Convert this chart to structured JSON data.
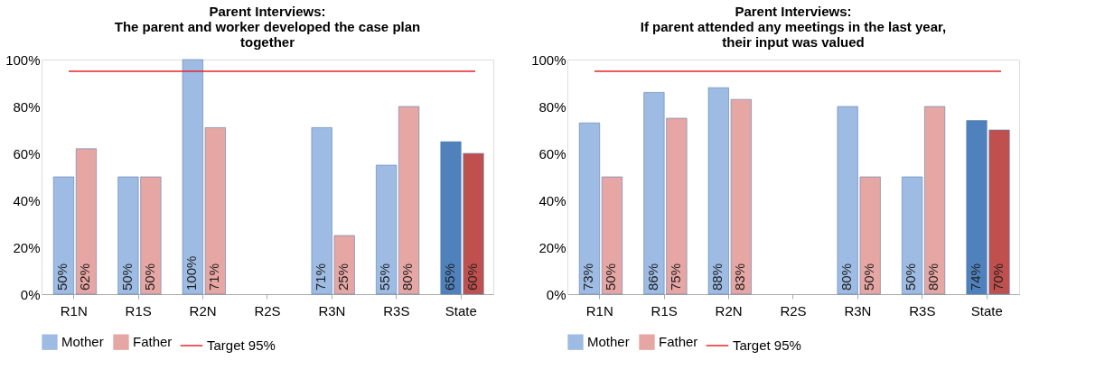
{
  "chart_data": [
    {
      "type": "bar",
      "title": "Parent Interviews:\nThe parent and worker developed the case plan\ntogether",
      "categories": [
        "R1N",
        "R1S",
        "R2N",
        "R2S",
        "R3N",
        "R3S",
        "State"
      ],
      "series": [
        {
          "name": "Mother",
          "color": "#9dbbe3",
          "colors": [
            "#9dbbe3",
            "#9dbbe3",
            "#9dbbe3",
            "#9dbbe3",
            "#9dbbe3",
            "#9dbbe3",
            "#4f81bd"
          ],
          "values": [
            50,
            50,
            100,
            null,
            71,
            55,
            65
          ],
          "value_labels": [
            "50%",
            "50%",
            "100%",
            null,
            "71%",
            "55%",
            "65%"
          ]
        },
        {
          "name": "Father",
          "color": "#e6a6a4",
          "colors": [
            "#e6a6a4",
            "#e6a6a4",
            "#e6a6a4",
            "#e6a6a4",
            "#e6a6a4",
            "#e6a6a4",
            "#c0504d"
          ],
          "values": [
            62,
            50,
            71,
            null,
            25,
            80,
            60
          ],
          "value_labels": [
            "62%",
            "50%",
            "71%",
            null,
            "25%",
            "80%",
            "60%"
          ]
        }
      ],
      "ylim": [
        0,
        100
      ],
      "yticks": [
        {
          "value": 0,
          "label": "0%"
        },
        {
          "value": 20,
          "label": "20%"
        },
        {
          "value": 40,
          "label": "40%"
        },
        {
          "value": 60,
          "label": "60%"
        },
        {
          "value": 80,
          "label": "80%"
        },
        {
          "value": 100,
          "label": "100%"
        }
      ],
      "ref_lines": [
        {
          "axis": "y",
          "value": 95,
          "label": "Target 95%",
          "color": "#e8262b"
        }
      ],
      "legend": "bottom",
      "grid": false
    },
    {
      "type": "bar",
      "title": "Parent Interviews:\nIf parent attended any meetings in the last year,\ntheir input was valued",
      "categories": [
        "R1N",
        "R1S",
        "R2N",
        "R2S",
        "R3N",
        "R3S",
        "State"
      ],
      "series": [
        {
          "name": "Mother",
          "color": "#9dbbe3",
          "colors": [
            "#9dbbe3",
            "#9dbbe3",
            "#9dbbe3",
            "#9dbbe3",
            "#9dbbe3",
            "#9dbbe3",
            "#4f81bd"
          ],
          "values": [
            73,
            86,
            88,
            null,
            80,
            50,
            74
          ],
          "value_labels": [
            "73%",
            "86%",
            "88%",
            null,
            "80%",
            "50%",
            "74%"
          ]
        },
        {
          "name": "Father",
          "color": "#e6a6a4",
          "colors": [
            "#e6a6a4",
            "#e6a6a4",
            "#e6a6a4",
            "#e6a6a4",
            "#e6a6a4",
            "#e6a6a4",
            "#c0504d"
          ],
          "values": [
            50,
            75,
            83,
            null,
            50,
            80,
            70
          ],
          "value_labels": [
            "50%",
            "75%",
            "83%",
            null,
            "50%",
            "80%",
            "70%"
          ]
        }
      ],
      "ylim": [
        0,
        100
      ],
      "yticks": [
        {
          "value": 0,
          "label": "0%"
        },
        {
          "value": 20,
          "label": "20%"
        },
        {
          "value": 40,
          "label": "40%"
        },
        {
          "value": 60,
          "label": "60%"
        },
        {
          "value": 80,
          "label": "80%"
        },
        {
          "value": 100,
          "label": "100%"
        }
      ],
      "ref_lines": [
        {
          "axis": "y",
          "value": 95,
          "label": "Target 95%",
          "color": "#e8262b"
        }
      ],
      "legend": "bottom",
      "grid": false
    }
  ]
}
